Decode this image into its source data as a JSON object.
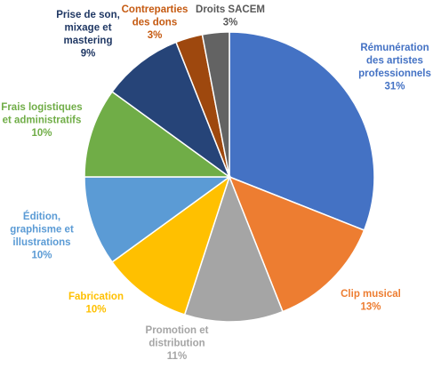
{
  "chart_data": {
    "type": "pie",
    "legend": "none",
    "slices": [
      {
        "label": [
          "Rémunération",
          "des artistes",
          "professionnels"
        ],
        "value": 31,
        "display": "31%",
        "color": "#4472C4"
      },
      {
        "label": [
          "Clip musical"
        ],
        "value": 13,
        "display": "13%",
        "color": "#ED7D31"
      },
      {
        "label": [
          "Promotion et",
          "distribution"
        ],
        "value": 11,
        "display": "11%",
        "color": "#A5A5A5"
      },
      {
        "label": [
          "Fabrication"
        ],
        "value": 10,
        "display": "10%",
        "color": "#FFC000"
      },
      {
        "label": [
          "Édition,",
          "graphisme et",
          "illustrations"
        ],
        "value": 10,
        "display": "10%",
        "color": "#5B9BD5"
      },
      {
        "label": [
          "Frais logistiques",
          "et administratifs"
        ],
        "value": 10,
        "display": "10%",
        "color": "#70AD47"
      },
      {
        "label": [
          "Prise de son,",
          "mixage et",
          "mastering"
        ],
        "value": 9,
        "display": "9%",
        "color": "#264478"
      },
      {
        "label": [
          "Contreparties",
          "des dons"
        ],
        "value": 3,
        "display": "3%",
        "color": "#9E480E"
      },
      {
        "label": [
          "Droits SACEM"
        ],
        "value": 3,
        "display": "3%",
        "color": "#636363"
      }
    ],
    "label_colors": [
      "#4472C4",
      "#ED7D31",
      "#A5A5A5",
      "#FFC000",
      "#5B9BD5",
      "#70AD47",
      "#203864",
      "#C55A11",
      "#595959"
    ]
  }
}
